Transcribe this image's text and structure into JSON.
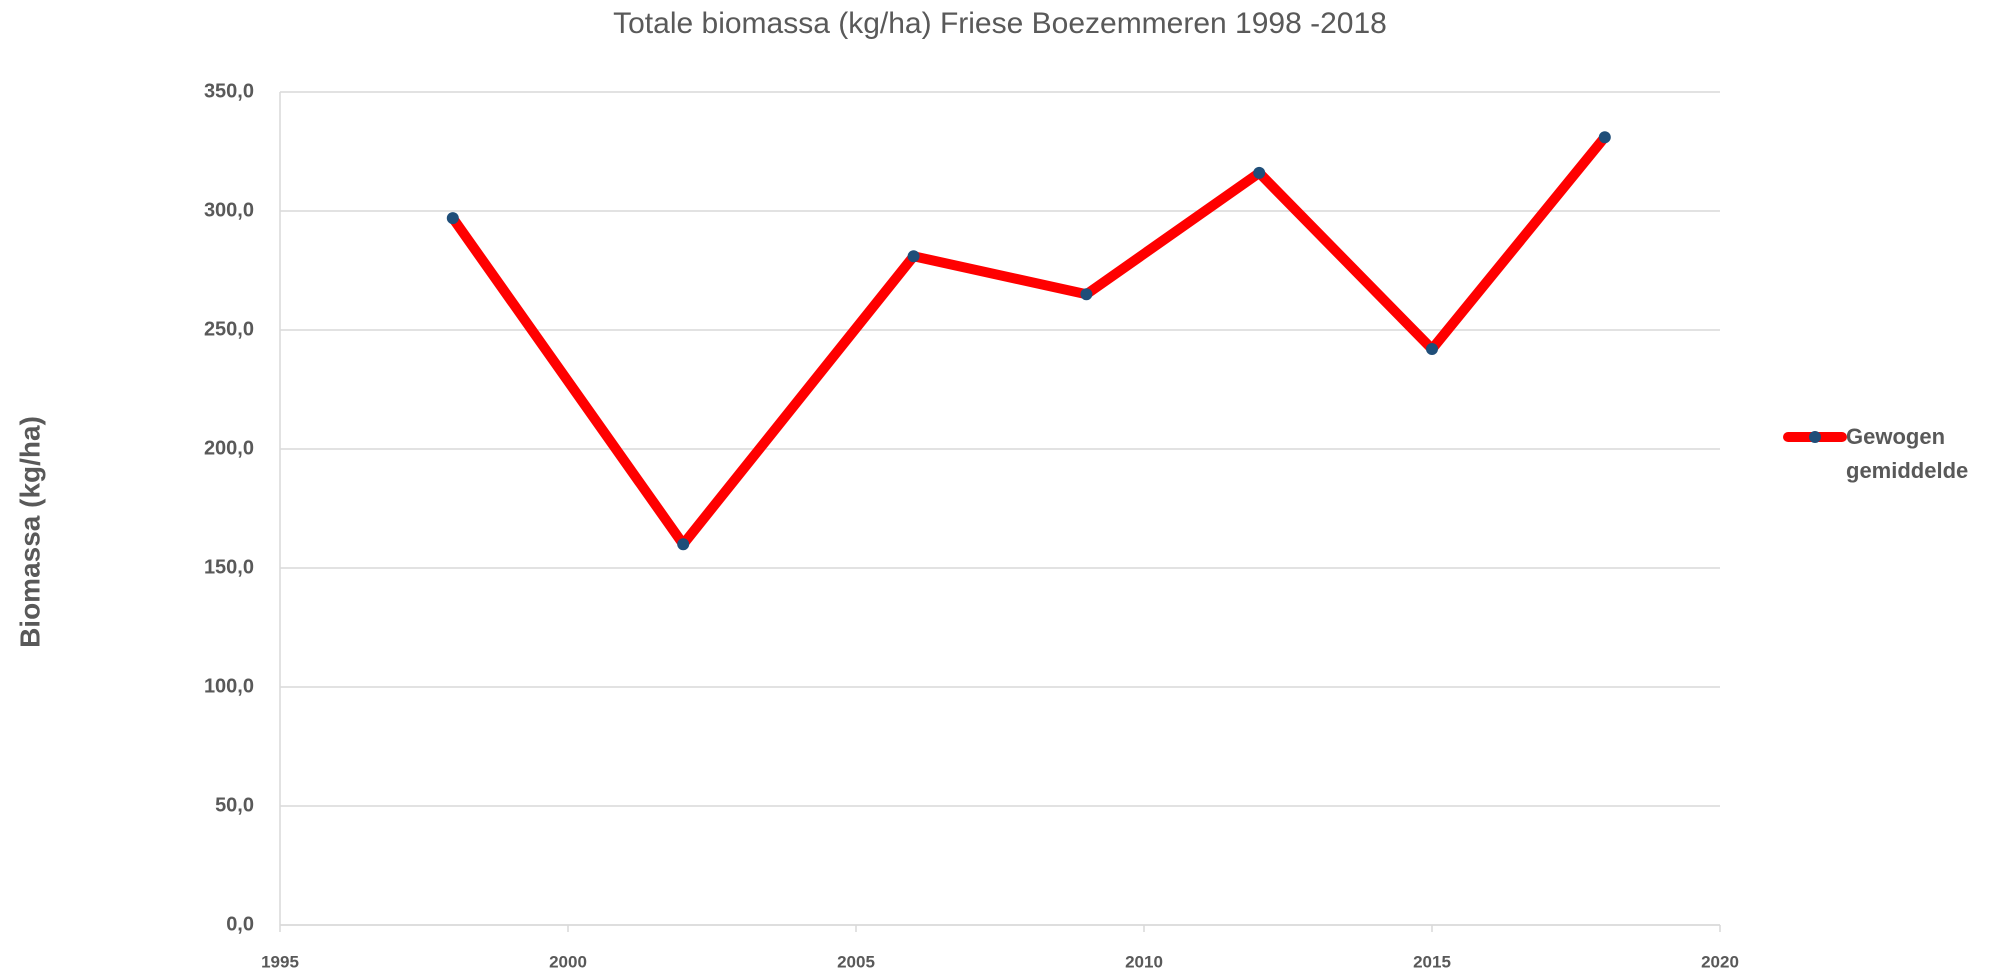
{
  "chart_data": {
    "type": "line",
    "title": "Totale biomassa (kg/ha) Friese Boezemmeren 1998 -2018",
    "y_label": "Biomassa (kg/ha)",
    "x": [
      1998,
      2002,
      2006,
      2009,
      2012,
      2015,
      2018
    ],
    "series": [
      {
        "name": "Gewogen gemiddelde",
        "color": "#ff0000",
        "marker_color": "#1f4e79",
        "values": [
          297,
          160,
          281,
          265,
          316,
          242,
          331
        ]
      }
    ],
    "xlim": [
      1995,
      2020
    ],
    "xticks": [
      1995,
      2000,
      2005,
      2010,
      2015,
      2020
    ],
    "ylim": [
      0,
      350
    ],
    "yticks": [
      {
        "value": 0,
        "label": "0,0"
      },
      {
        "value": 50,
        "label": "50,0"
      },
      {
        "value": 100,
        "label": "100,0"
      },
      {
        "value": 150,
        "label": "150,0"
      },
      {
        "value": 200,
        "label": "200,0"
      },
      {
        "value": 250,
        "label": "250,0"
      },
      {
        "value": 300,
        "label": "300,0"
      },
      {
        "value": 350,
        "label": "350,0"
      }
    ],
    "grid": true,
    "legend": "right"
  }
}
